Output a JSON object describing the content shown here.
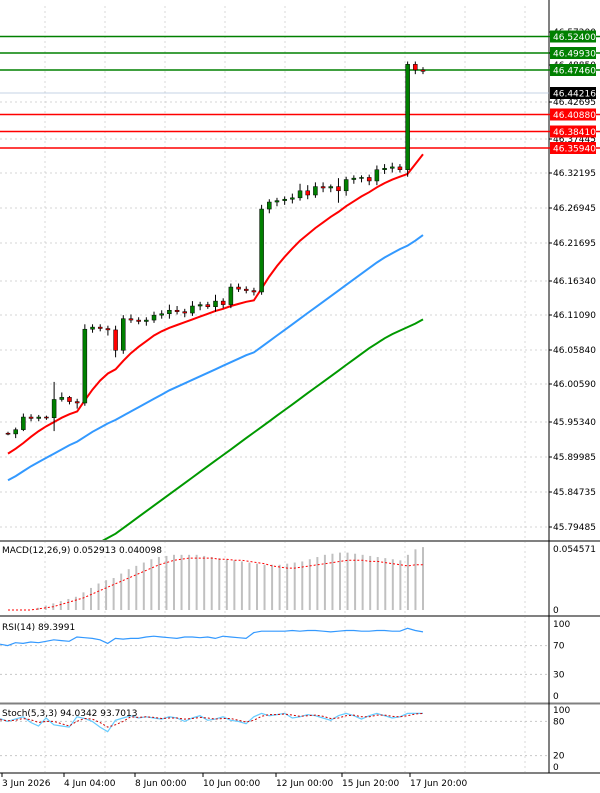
{
  "chart_data": [
    {
      "type": "line",
      "panel": "main",
      "ylim": [
        45.775,
        46.535
      ],
      "grid": true,
      "y_ticks": [
        "46.57200",
        "46.49930",
        "46.48850",
        "46.42695",
        "46.37445",
        "46.32195",
        "46.26945",
        "46.21695",
        "46.16340",
        "46.11090",
        "46.05840",
        "46.00590",
        "45.95340",
        "45.89985",
        "45.84735",
        "45.79485"
      ],
      "levels": [
        {
          "label": "46.52400",
          "value": 46.524,
          "color": "#008000",
          "style": "resistance"
        },
        {
          "label": "46.49930",
          "value": 46.4993,
          "color": "#008000",
          "style": "resistance"
        },
        {
          "label": "46.47460",
          "value": 46.4746,
          "color": "#008000",
          "style": "resistance"
        },
        {
          "label": "46.44216",
          "value": 46.44216,
          "color": "#000000",
          "style": "current"
        },
        {
          "label": "46.40880",
          "value": 46.4088,
          "color": "#ff0000",
          "style": "support"
        },
        {
          "label": "46.38410",
          "value": 46.3841,
          "color": "#ff0000",
          "style": "support"
        },
        {
          "label": "46.35940",
          "value": 46.3594,
          "color": "#ff0000",
          "style": "support"
        }
      ],
      "candles": [
        [
          45.927,
          45.929,
          45.924,
          45.926
        ],
        [
          45.926,
          45.935,
          45.92,
          45.932
        ],
        [
          45.932,
          45.955,
          45.93,
          45.95
        ],
        [
          45.95,
          45.954,
          45.944,
          45.948
        ],
        [
          45.948,
          45.953,
          45.944,
          45.95
        ],
        [
          45.95,
          45.952,
          45.946,
          45.949
        ],
        [
          45.949,
          46.0,
          45.93,
          45.975
        ],
        [
          45.975,
          45.985,
          45.972,
          45.978
        ],
        [
          45.978,
          45.98,
          45.968,
          45.972
        ],
        [
          45.972,
          45.976,
          45.962,
          45.97
        ],
        [
          45.97,
          46.082,
          45.966,
          46.075
        ],
        [
          46.075,
          46.082,
          46.07,
          46.078
        ],
        [
          46.078,
          46.082,
          46.072,
          46.076
        ],
        [
          46.076,
          46.08,
          46.066,
          46.074
        ],
        [
          46.074,
          46.08,
          46.035,
          46.045
        ],
        [
          46.045,
          46.095,
          46.04,
          46.09
        ],
        [
          46.09,
          46.096,
          46.084,
          46.088
        ],
        [
          46.088,
          46.092,
          46.082,
          46.086
        ],
        [
          46.086,
          46.092,
          46.08,
          46.088
        ],
        [
          46.088,
          46.1,
          46.084,
          46.095
        ],
        [
          46.095,
          46.102,
          46.09,
          46.097
        ],
        [
          46.097,
          46.11,
          46.09,
          46.102
        ],
        [
          46.102,
          46.108,
          46.096,
          46.1
        ],
        [
          46.1,
          46.104,
          46.092,
          46.098
        ],
        [
          46.098,
          46.115,
          46.094,
          46.108
        ],
        [
          46.108,
          46.114,
          46.102,
          46.11
        ],
        [
          46.11,
          46.114,
          46.104,
          46.107
        ],
        [
          46.107,
          46.124,
          46.1,
          46.115
        ],
        [
          46.115,
          46.119,
          46.105,
          46.11
        ],
        [
          46.11,
          46.14,
          46.105,
          46.135
        ],
        [
          46.135,
          46.14,
          46.128,
          46.132
        ],
        [
          46.132,
          46.136,
          46.126,
          46.13
        ],
        [
          46.13,
          46.134,
          46.123,
          46.128
        ],
        [
          46.128,
          46.252,
          46.124,
          46.246
        ],
        [
          46.246,
          46.26,
          46.24,
          46.256
        ],
        [
          46.256,
          46.262,
          46.25,
          46.258
        ],
        [
          46.258,
          46.264,
          46.252,
          46.26
        ],
        [
          46.26,
          46.268,
          46.254,
          46.262
        ],
        [
          46.262,
          46.282,
          46.258,
          46.272
        ],
        [
          46.272,
          46.28,
          46.26,
          46.266
        ],
        [
          46.266,
          46.284,
          46.262,
          46.278
        ],
        [
          46.278,
          46.284,
          46.27,
          46.276
        ],
        [
          46.276,
          46.281,
          46.27,
          46.278
        ],
        [
          46.278,
          46.29,
          46.255,
          46.272
        ],
        [
          46.272,
          46.292,
          46.265,
          46.288
        ],
        [
          46.288,
          46.294,
          46.282,
          46.29
        ],
        [
          46.29,
          46.294,
          46.284,
          46.291
        ],
        [
          46.291,
          46.295,
          46.28,
          46.286
        ],
        [
          46.286,
          46.308,
          46.28,
          46.302
        ],
        [
          46.302,
          46.31,
          46.296,
          46.304
        ],
        [
          46.304,
          46.312,
          46.298,
          46.306
        ],
        [
          46.306,
          46.31,
          46.298,
          46.302
        ],
        [
          46.302,
          46.456,
          46.292,
          46.452
        ],
        [
          46.452,
          46.456,
          46.438,
          46.444
        ],
        [
          46.444,
          46.448,
          46.438,
          46.442
        ]
      ],
      "ma_red": [
        45.898,
        45.905,
        45.913,
        45.922,
        45.93,
        45.937,
        45.943,
        45.949,
        45.954,
        45.958,
        45.974,
        45.989,
        46.002,
        46.012,
        46.018,
        46.03,
        46.041,
        46.05,
        46.058,
        46.066,
        46.072,
        46.077,
        46.081,
        46.085,
        46.089,
        46.093,
        46.097,
        46.101,
        46.104,
        46.108,
        46.111,
        46.114,
        46.116,
        46.133,
        46.15,
        46.165,
        46.178,
        46.19,
        46.201,
        46.21,
        46.219,
        46.227,
        46.235,
        46.242,
        46.25,
        46.257,
        46.264,
        46.27,
        46.277,
        46.283,
        46.288,
        46.292,
        46.296,
        46.31,
        46.324
      ],
      "ma_blue": [
        45.86,
        45.866,
        45.873,
        45.88,
        45.886,
        45.892,
        45.898,
        45.904,
        45.91,
        45.915,
        45.922,
        45.929,
        45.935,
        45.941,
        45.946,
        45.952,
        45.958,
        45.964,
        45.97,
        45.976,
        45.982,
        45.988,
        45.993,
        45.998,
        46.003,
        46.008,
        46.013,
        46.018,
        46.023,
        46.028,
        46.033,
        46.038,
        46.042,
        46.05,
        46.058,
        46.066,
        46.074,
        46.082,
        46.09,
        46.098,
        46.106,
        46.114,
        46.122,
        46.13,
        46.138,
        46.146,
        46.154,
        46.162,
        46.17,
        46.177,
        46.183,
        46.189,
        46.194,
        46.201,
        46.209
      ],
      "ma_green": [
        45.7,
        45.706,
        45.712,
        45.718,
        45.724,
        45.73,
        45.736,
        45.742,
        45.748,
        45.754,
        45.76,
        45.766,
        45.772,
        45.778,
        45.784,
        45.792,
        45.8,
        45.808,
        45.816,
        45.824,
        45.832,
        45.84,
        45.848,
        45.856,
        45.864,
        45.872,
        45.88,
        45.888,
        45.896,
        45.904,
        45.912,
        45.92,
        45.928,
        45.936,
        45.944,
        45.952,
        45.96,
        45.968,
        45.976,
        45.984,
        45.992,
        46.0,
        46.008,
        46.016,
        46.024,
        46.032,
        46.04,
        46.048,
        46.055,
        46.062,
        46.068,
        46.073,
        46.078,
        46.083,
        46.089
      ]
    },
    {
      "type": "bar",
      "panel": "macd",
      "title": "MACD(12,26,9) 0.052913 0.040098",
      "ylim": [
        0,
        0.058
      ],
      "y_ticks": [
        "0.054571",
        "0"
      ],
      "histogram": [
        0.0,
        0.0,
        0.0,
        0.0,
        0.002,
        0.004,
        0.006,
        0.008,
        0.01,
        0.012,
        0.016,
        0.02,
        0.024,
        0.027,
        0.029,
        0.033,
        0.037,
        0.04,
        0.043,
        0.046,
        0.048,
        0.049,
        0.05,
        0.05,
        0.05,
        0.05,
        0.049,
        0.048,
        0.047,
        0.046,
        0.045,
        0.044,
        0.043,
        0.042,
        0.041,
        0.041,
        0.041,
        0.042,
        0.043,
        0.044,
        0.046,
        0.048,
        0.05,
        0.051,
        0.052,
        0.052,
        0.051,
        0.05,
        0.049,
        0.048,
        0.047,
        0.046,
        0.045,
        0.05,
        0.055,
        0.057
      ],
      "signal": [
        0.0,
        0.0,
        0.0,
        0.0,
        0.001,
        0.002,
        0.003,
        0.005,
        0.007,
        0.009,
        0.011,
        0.014,
        0.017,
        0.02,
        0.023,
        0.026,
        0.029,
        0.032,
        0.035,
        0.038,
        0.041,
        0.043,
        0.045,
        0.046,
        0.047,
        0.047,
        0.047,
        0.047,
        0.046,
        0.046,
        0.045,
        0.045,
        0.044,
        0.043,
        0.042,
        0.04,
        0.039,
        0.038,
        0.038,
        0.039,
        0.04,
        0.041,
        0.042,
        0.043,
        0.044,
        0.045,
        0.045,
        0.045,
        0.044,
        0.044,
        0.043,
        0.042,
        0.041,
        0.04,
        0.041,
        0.041
      ]
    },
    {
      "type": "line",
      "panel": "rsi",
      "title": "RSI(14) 89.3991",
      "ylim": [
        0,
        100
      ],
      "y_ticks": [
        "100",
        "70",
        "30",
        "0"
      ],
      "values": [
        72,
        70,
        74,
        73,
        75,
        74,
        76,
        78,
        77,
        76,
        82,
        81,
        80,
        78,
        73,
        80,
        79,
        80,
        80,
        82,
        83,
        82,
        81,
        80,
        82,
        82,
        81,
        82,
        80,
        83,
        82,
        81,
        80,
        88,
        90,
        90,
        90,
        90,
        91,
        90,
        91,
        91,
        90,
        89,
        90,
        91,
        91,
        90,
        90,
        91,
        91,
        90,
        90,
        94,
        91,
        89
      ]
    },
    {
      "type": "line",
      "panel": "stoch",
      "title": "Stoch(5,3,3) 94.0342 93.7013",
      "ylim": [
        0,
        100
      ],
      "y_ticks": [
        "100",
        "80",
        "20",
        "0"
      ],
      "k": [
        85,
        80,
        84,
        88,
        78,
        72,
        86,
        74,
        72,
        70,
        88,
        85,
        80,
        70,
        62,
        82,
        86,
        90,
        86,
        88,
        86,
        84,
        88,
        86,
        80,
        86,
        90,
        82,
        84,
        88,
        82,
        80,
        76,
        88,
        94,
        90,
        92,
        94,
        86,
        88,
        92,
        90,
        86,
        82,
        90,
        94,
        90,
        84,
        90,
        94,
        90,
        86,
        88,
        94,
        94,
        94
      ],
      "d": [
        83,
        81,
        82,
        85,
        83,
        78,
        80,
        80,
        76,
        72,
        80,
        85,
        84,
        78,
        70,
        74,
        80,
        88,
        87,
        88,
        87,
        85,
        86,
        86,
        84,
        85,
        87,
        86,
        84,
        85,
        85,
        82,
        79,
        82,
        89,
        92,
        92,
        93,
        91,
        89,
        90,
        91,
        89,
        85,
        86,
        90,
        91,
        88,
        88,
        91,
        91,
        89,
        88,
        90,
        93,
        94
      ]
    }
  ],
  "time_labels": [
    "3 Jun 2026",
    "4 Jun 04:00",
    "8 Jun 00:00",
    "10 Jun 00:00",
    "12 Jun 00:00",
    "15 Jun 20:00",
    "17 Jun 20:00"
  ],
  "colors": {
    "bull": "#008000",
    "bear": "#ff0000",
    "ma_red": "#ff0000",
    "ma_blue": "#3399ff",
    "ma_green": "#009900",
    "rsi": "#3399ff",
    "stoch_k": "#66ccff",
    "stoch_d": "#cc0000",
    "grid": "#c8c8c8"
  }
}
